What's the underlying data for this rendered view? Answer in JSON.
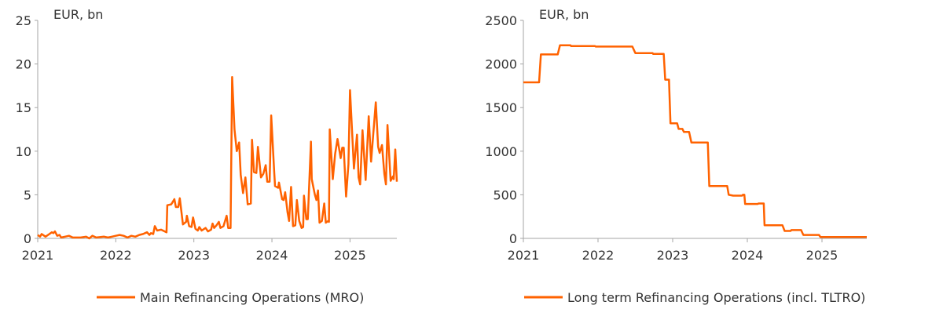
{
  "colors": {
    "line": "#FF6200",
    "axis": "#A6A6A6",
    "text": "#333333"
  },
  "chart_data": [
    {
      "type": "line",
      "title": "",
      "ylabel": "EUR, bn",
      "xlabel": "",
      "xlim": [
        2021,
        2025.6
      ],
      "ylim": [
        0,
        25
      ],
      "yticks": [
        0,
        5,
        10,
        15,
        20,
        25
      ],
      "xticks": [
        2021,
        2022,
        2023,
        2024,
        2025
      ],
      "grid": false,
      "legend_position": "bottom",
      "series": [
        {
          "name": "Main Refinancing Operations (MRO)",
          "points": [
            [
              2021.0,
              0.4
            ],
            [
              2021.03,
              0.2
            ],
            [
              2021.05,
              0.5
            ],
            [
              2021.1,
              0.2
            ],
            [
              2021.15,
              0.5
            ],
            [
              2021.18,
              0.7
            ],
            [
              2021.2,
              0.6
            ],
            [
              2021.22,
              0.8
            ],
            [
              2021.25,
              0.3
            ],
            [
              2021.28,
              0.4
            ],
            [
              2021.3,
              0.1
            ],
            [
              2021.35,
              0.2
            ],
            [
              2021.4,
              0.3
            ],
            [
              2021.45,
              0.1
            ],
            [
              2021.55,
              0.1
            ],
            [
              2021.62,
              0.2
            ],
            [
              2021.66,
              0.0
            ],
            [
              2021.7,
              0.3
            ],
            [
              2021.75,
              0.1
            ],
            [
              2021.85,
              0.2
            ],
            [
              2021.9,
              0.1
            ],
            [
              2021.95,
              0.2
            ],
            [
              2022.0,
              0.3
            ],
            [
              2022.05,
              0.4
            ],
            [
              2022.1,
              0.3
            ],
            [
              2022.15,
              0.1
            ],
            [
              2022.2,
              0.3
            ],
            [
              2022.25,
              0.2
            ],
            [
              2022.3,
              0.4
            ],
            [
              2022.35,
              0.5
            ],
            [
              2022.4,
              0.7
            ],
            [
              2022.43,
              0.4
            ],
            [
              2022.45,
              0.6
            ],
            [
              2022.48,
              0.5
            ],
            [
              2022.5,
              1.4
            ],
            [
              2022.53,
              0.9
            ],
            [
              2022.58,
              1.0
            ],
            [
              2022.65,
              0.7
            ],
            [
              2022.66,
              3.8
            ],
            [
              2022.71,
              3.9
            ],
            [
              2022.75,
              4.5
            ],
            [
              2022.77,
              3.6
            ],
            [
              2022.8,
              3.6
            ],
            [
              2022.82,
              4.6
            ],
            [
              2022.86,
              1.6
            ],
            [
              2022.9,
              1.9
            ],
            [
              2022.91,
              2.6
            ],
            [
              2022.94,
              1.4
            ],
            [
              2022.97,
              1.3
            ],
            [
              2022.99,
              2.4
            ],
            [
              2023.02,
              1.1
            ],
            [
              2023.05,
              0.9
            ],
            [
              2023.07,
              1.3
            ],
            [
              2023.1,
              0.9
            ],
            [
              2023.15,
              1.2
            ],
            [
              2023.18,
              0.8
            ],
            [
              2023.22,
              1.0
            ],
            [
              2023.24,
              1.7
            ],
            [
              2023.26,
              1.2
            ],
            [
              2023.29,
              1.5
            ],
            [
              2023.32,
              1.9
            ],
            [
              2023.34,
              1.2
            ],
            [
              2023.38,
              1.4
            ],
            [
              2023.42,
              2.6
            ],
            [
              2023.44,
              1.2
            ],
            [
              2023.47,
              1.2
            ],
            [
              2023.49,
              18.5
            ],
            [
              2023.52,
              12.5
            ],
            [
              2023.55,
              10.0
            ],
            [
              2023.58,
              11.0
            ],
            [
              2023.6,
              7.3
            ],
            [
              2023.63,
              5.2
            ],
            [
              2023.66,
              7.0
            ],
            [
              2023.69,
              3.9
            ],
            [
              2023.73,
              4.0
            ],
            [
              2023.745,
              11.3
            ],
            [
              2023.77,
              7.6
            ],
            [
              2023.8,
              7.5
            ],
            [
              2023.82,
              10.5
            ],
            [
              2023.86,
              7.0
            ],
            [
              2023.89,
              7.4
            ],
            [
              2023.92,
              8.4
            ],
            [
              2023.94,
              6.5
            ],
            [
              2023.97,
              6.5
            ],
            [
              2023.99,
              14.1
            ],
            [
              2024.03,
              7.5
            ],
            [
              2024.04,
              6.0
            ],
            [
              2024.08,
              5.8
            ],
            [
              2024.09,
              6.4
            ],
            [
              2024.13,
              4.5
            ],
            [
              2024.15,
              4.4
            ],
            [
              2024.17,
              5.3
            ],
            [
              2024.2,
              3.0
            ],
            [
              2024.22,
              2.0
            ],
            [
              2024.245,
              5.9
            ],
            [
              2024.27,
              1.4
            ],
            [
              2024.3,
              1.5
            ],
            [
              2024.32,
              4.4
            ],
            [
              2024.35,
              2.0
            ],
            [
              2024.38,
              1.2
            ],
            [
              2024.4,
              1.3
            ],
            [
              2024.41,
              4.9
            ],
            [
              2024.44,
              2.2
            ],
            [
              2024.46,
              2.2
            ],
            [
              2024.5,
              11.1
            ],
            [
              2024.51,
              6.8
            ],
            [
              2024.55,
              5.0
            ],
            [
              2024.57,
              4.4
            ],
            [
              2024.59,
              5.5
            ],
            [
              2024.61,
              1.8
            ],
            [
              2024.64,
              2.0
            ],
            [
              2024.67,
              4.0
            ],
            [
              2024.69,
              1.8
            ],
            [
              2024.72,
              2.0
            ],
            [
              2024.73,
              1.9
            ],
            [
              2024.74,
              12.5
            ],
            [
              2024.78,
              6.8
            ],
            [
              2024.81,
              9.7
            ],
            [
              2024.84,
              11.4
            ],
            [
              2024.88,
              9.2
            ],
            [
              2024.9,
              10.4
            ],
            [
              2024.92,
              10.4
            ],
            [
              2024.95,
              4.8
            ],
            [
              2024.98,
              8.5
            ],
            [
              2025.0,
              17.0
            ],
            [
              2025.05,
              8.0
            ],
            [
              2025.09,
              11.9
            ],
            [
              2025.11,
              7.0
            ],
            [
              2025.13,
              6.2
            ],
            [
              2025.16,
              12.4
            ],
            [
              2025.2,
              6.7
            ],
            [
              2025.24,
              14.0
            ],
            [
              2025.27,
              8.8
            ],
            [
              2025.33,
              15.6
            ],
            [
              2025.36,
              10.5
            ],
            [
              2025.38,
              9.8
            ],
            [
              2025.41,
              10.7
            ],
            [
              2025.44,
              7.4
            ],
            [
              2025.46,
              6.2
            ],
            [
              2025.48,
              13.0
            ],
            [
              2025.52,
              6.6
            ],
            [
              2025.55,
              7.1
            ],
            [
              2025.56,
              6.8
            ],
            [
              2025.58,
              10.2
            ],
            [
              2025.6,
              6.5
            ]
          ]
        }
      ]
    },
    {
      "type": "line",
      "title": "",
      "ylabel": "EUR, bn",
      "xlabel": "",
      "xlim": [
        2021,
        2025.6
      ],
      "ylim": [
        0,
        2500
      ],
      "yticks": [
        0,
        500,
        1000,
        1500,
        2000,
        2500
      ],
      "xticks": [
        2021,
        2022,
        2023,
        2024,
        2025
      ],
      "grid": false,
      "legend_position": "bottom",
      "series": [
        {
          "name": "Long term Refinancing Operations (incl. TLTRO)",
          "points": [
            [
              2021.0,
              1790
            ],
            [
              2021.21,
              1790
            ],
            [
              2021.235,
              2110
            ],
            [
              2021.46,
              2110
            ],
            [
              2021.49,
              2215
            ],
            [
              2021.63,
              2215
            ],
            [
              2021.64,
              2205
            ],
            [
              2021.96,
              2205
            ],
            [
              2021.97,
              2200
            ],
            [
              2022.46,
              2200
            ],
            [
              2022.5,
              2125
            ],
            [
              2022.73,
              2125
            ],
            [
              2022.74,
              2115
            ],
            [
              2022.88,
              2115
            ],
            [
              2022.9,
              1820
            ],
            [
              2022.95,
              1820
            ],
            [
              2022.97,
              1320
            ],
            [
              2023.06,
              1320
            ],
            [
              2023.08,
              1255
            ],
            [
              2023.13,
              1255
            ],
            [
              2023.15,
              1220
            ],
            [
              2023.22,
              1220
            ],
            [
              2023.25,
              1100
            ],
            [
              2023.47,
              1100
            ],
            [
              2023.49,
              600
            ],
            [
              2023.73,
              600
            ],
            [
              2023.75,
              500
            ],
            [
              2023.81,
              490
            ],
            [
              2023.93,
              490
            ],
            [
              2023.94,
              500
            ],
            [
              2023.96,
              500
            ],
            [
              2023.97,
              395
            ],
            [
              2024.14,
              395
            ],
            [
              2024.15,
              400
            ],
            [
              2024.22,
              400
            ],
            [
              2024.23,
              150
            ],
            [
              2024.47,
              150
            ],
            [
              2024.5,
              85
            ],
            [
              2024.58,
              85
            ],
            [
              2024.59,
              95
            ],
            [
              2024.72,
              95
            ],
            [
              2024.75,
              40
            ],
            [
              2024.96,
              40
            ],
            [
              2024.98,
              15
            ],
            [
              2025.6,
              15
            ]
          ]
        }
      ]
    }
  ]
}
